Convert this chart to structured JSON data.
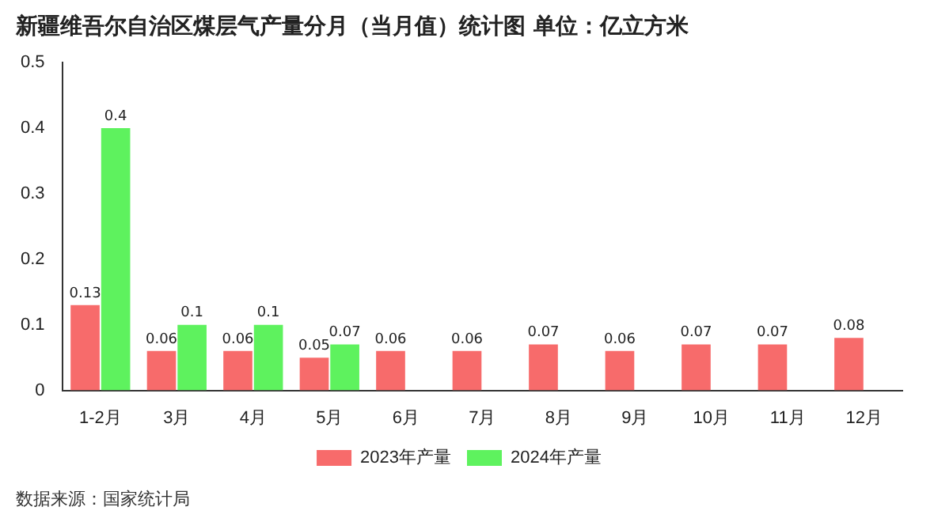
{
  "chart_data": {
    "type": "bar",
    "title": "新疆维吾尔自治区煤层气产量分月（当月值）统计图 单位：亿立方米",
    "categories": [
      "1-2月",
      "3月",
      "4月",
      "5月",
      "6月",
      "7月",
      "8月",
      "9月",
      "10月",
      "11月",
      "12月"
    ],
    "series": [
      {
        "name": "2023年产量",
        "color": "#f76b6b",
        "values": [
          0.13,
          0.06,
          0.06,
          0.05,
          0.06,
          0.06,
          0.07,
          0.06,
          0.07,
          0.07,
          0.08
        ]
      },
      {
        "name": "2024年产量",
        "color": "#5ef25e",
        "values": [
          0.4,
          0.1,
          0.1,
          0.07,
          null,
          null,
          null,
          null,
          null,
          null,
          null
        ]
      }
    ],
    "ylim": [
      0,
      0.5
    ],
    "yticks": [
      0,
      0.1,
      0.2,
      0.3,
      0.4,
      0.5
    ],
    "grid": false,
    "legend": "bottom",
    "data_labels": true,
    "annotations": [
      "数据来源：国家统计局"
    ]
  }
}
